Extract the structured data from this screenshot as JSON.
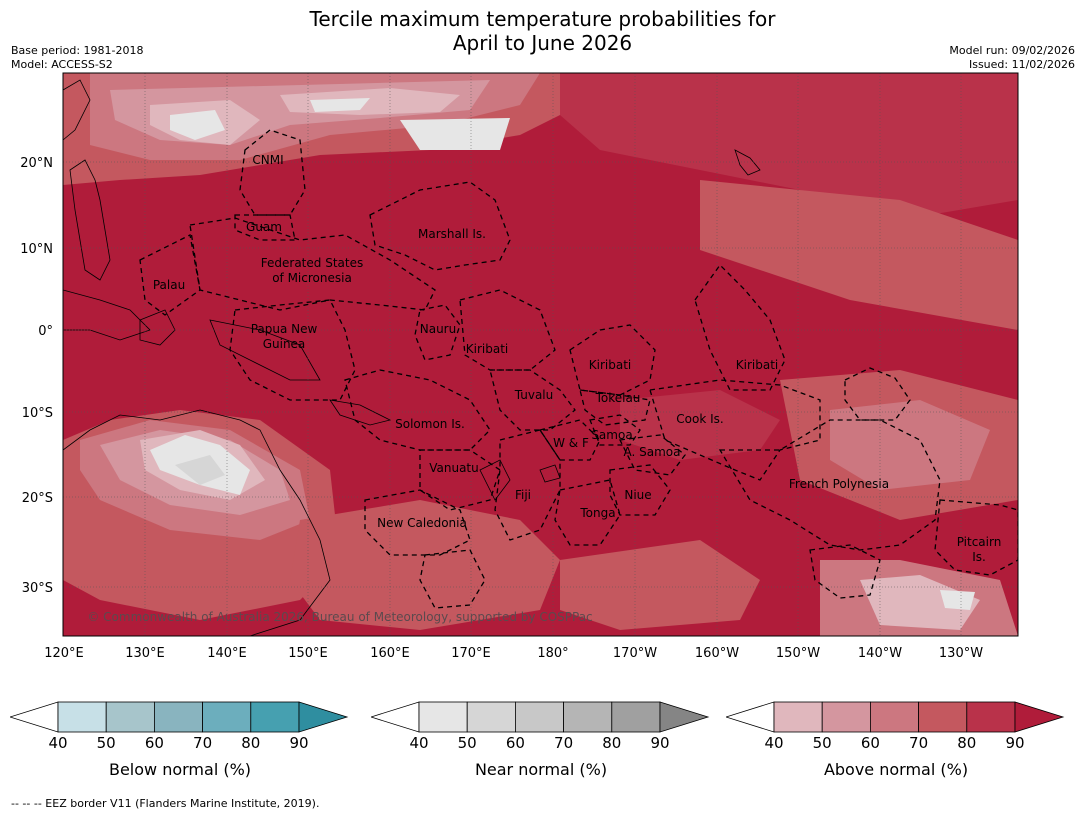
{
  "header": {
    "title_line1": "Tercile maximum temperature probabilities for",
    "title_line2": "April to June 2026",
    "base_period": "Base period: 1981-2018",
    "model": "Model: ACCESS-S2",
    "model_run": "Model run: 09/02/2026",
    "issued": "Issued: 11/02/2026"
  },
  "map": {
    "lat_labels": [
      "20°N",
      "10°N",
      "0°",
      "10°S",
      "20°S",
      "30°S"
    ],
    "lon_labels": [
      "120°E",
      "130°E",
      "140°E",
      "150°E",
      "160°E",
      "170°E",
      "180°",
      "170°W",
      "160°W",
      "150°W",
      "140°W",
      "130°W"
    ],
    "regions": [
      "CNMI",
      "Guam",
      "Marshall Is.",
      "Federated States",
      "of Micronesia",
      "Palau",
      "Papua New",
      "Guinea",
      "Nauru",
      "Kiribati",
      "Kiribati",
      "Kiribati",
      "Tuvalu",
      "Tokelau",
      "Cook Is.",
      "Solomon Is.",
      "W & F",
      "Samoa",
      "A. Samoa",
      "Vanuatu",
      "Fiji",
      "Niue",
      "Tonga",
      "French Polynesia",
      "New Caledonia",
      "Pitcairn",
      "Is."
    ],
    "copyright": "© Commonwealth of Australia 2026, Bureau of Meteorology, supported by COSPPac"
  },
  "colorbars": [
    {
      "label": "Below normal (%)",
      "ticks": [
        "40",
        "50",
        "60",
        "70",
        "80",
        "90"
      ],
      "colors": [
        "#ffffff",
        "#c7e0e7",
        "#a7c5cb",
        "#89b4bf",
        "#6caebd",
        "#46a0b0",
        "#2f8ea0"
      ]
    },
    {
      "label": "Near normal (%)",
      "ticks": [
        "40",
        "50",
        "60",
        "70",
        "80",
        "90"
      ],
      "colors": [
        "#ffffff",
        "#e6e6e6",
        "#d6d6d6",
        "#c8c8c8",
        "#b5b5b5",
        "#a0a0a0",
        "#858585"
      ]
    },
    {
      "label": "Above normal (%)",
      "ticks": [
        "40",
        "50",
        "60",
        "70",
        "80",
        "90"
      ],
      "colors": [
        "#ffffff",
        "#e0b7bd",
        "#d4969f",
        "#cc7780",
        "#c4585f",
        "#b9324a",
        "#b01c3a"
      ]
    }
  ],
  "footer": {
    "legend_line": "-- -- -- EEZ border V11 (Flanders Marine Institute, 2019)."
  }
}
